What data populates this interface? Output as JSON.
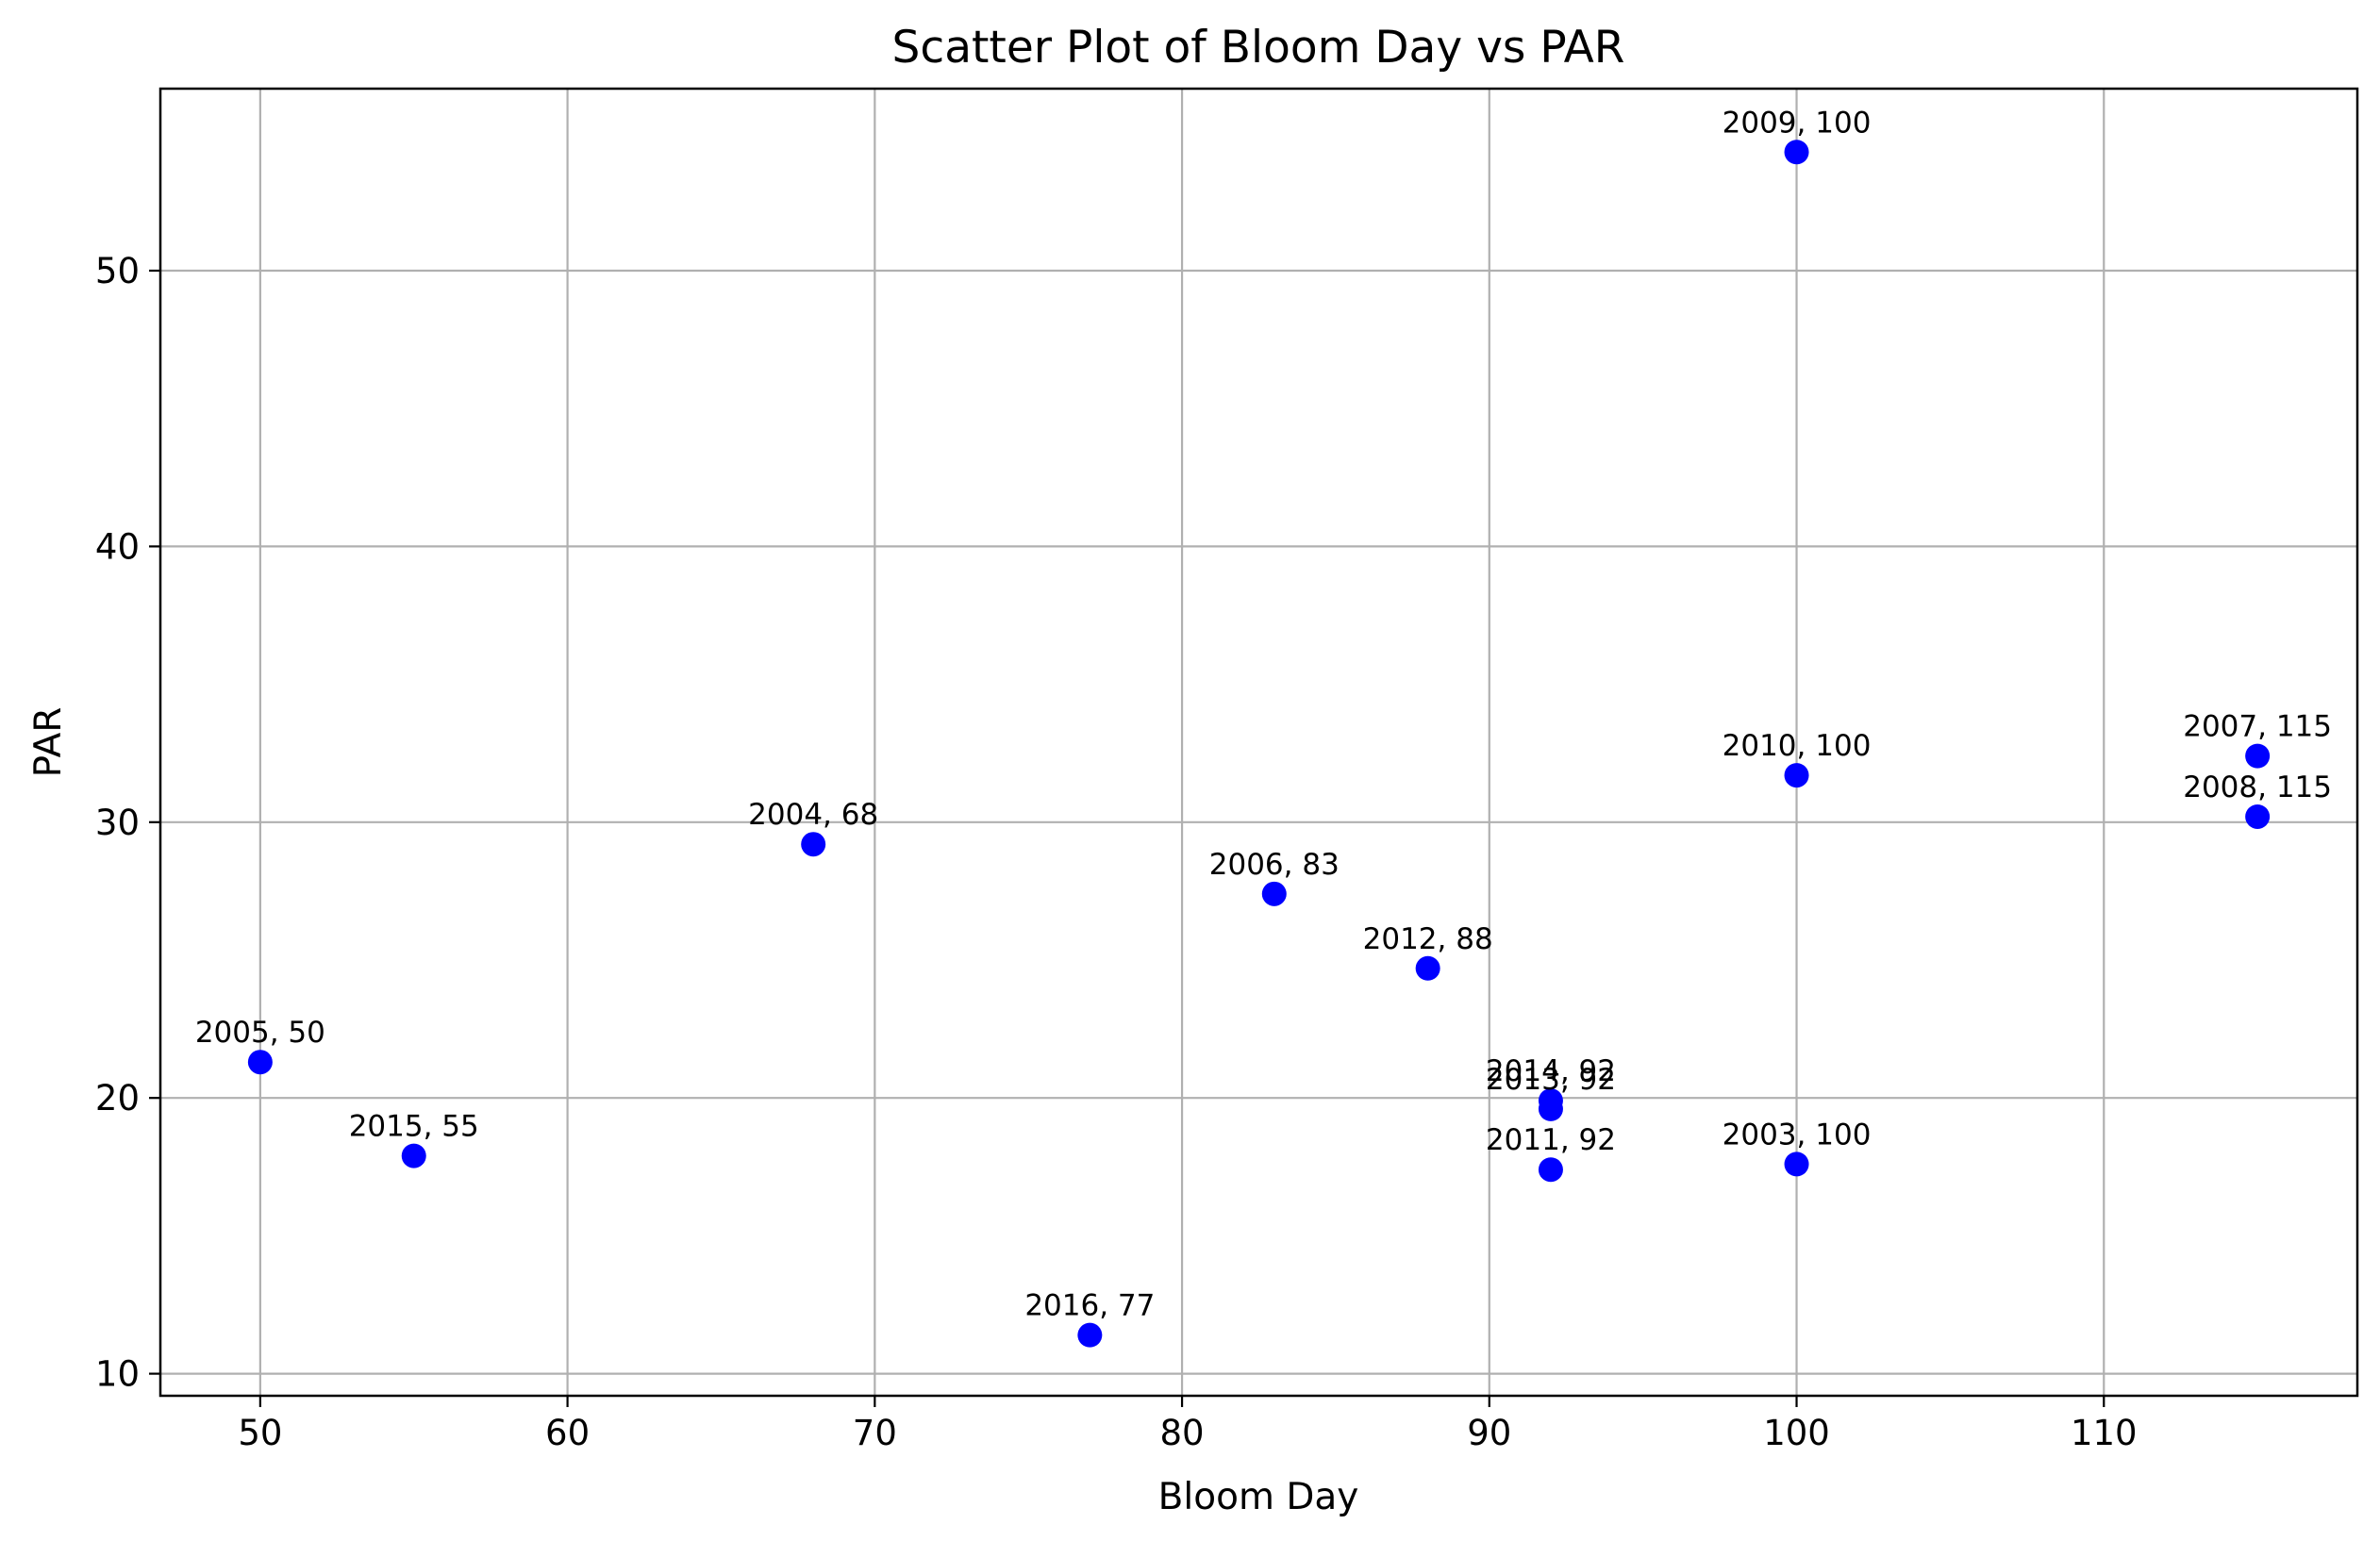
{
  "chart_data": {
    "type": "scatter",
    "title": "Scatter Plot of Bloom Day vs PAR",
    "xlabel": "Bloom Day",
    "ylabel": "PAR",
    "xlim": [
      46.75,
      118.25
    ],
    "ylim": [
      9.2,
      56.6
    ],
    "xticks": [
      50,
      60,
      70,
      80,
      90,
      100,
      110
    ],
    "yticks": [
      10,
      20,
      30,
      40,
      50
    ],
    "grid": true,
    "marker_color": "#0000ff",
    "points": [
      {
        "x": 100,
        "y": 54.3,
        "label": "2009, 100"
      },
      {
        "x": 115,
        "y": 32.4,
        "label": "2007, 115"
      },
      {
        "x": 100,
        "y": 31.7,
        "label": "2010, 100"
      },
      {
        "x": 115,
        "y": 30.2,
        "label": "2008, 115"
      },
      {
        "x": 68,
        "y": 29.2,
        "label": "2004, 68"
      },
      {
        "x": 83,
        "y": 27.4,
        "label": "2006, 83"
      },
      {
        "x": 88,
        "y": 24.7,
        "label": "2012, 88"
      },
      {
        "x": 50,
        "y": 21.3,
        "label": "2005, 50"
      },
      {
        "x": 92,
        "y": 19.9,
        "label": "2014, 92"
      },
      {
        "x": 92,
        "y": 19.6,
        "label": "2013, 92"
      },
      {
        "x": 55,
        "y": 17.9,
        "label": "2015, 55"
      },
      {
        "x": 100,
        "y": 17.6,
        "label": "2003, 100"
      },
      {
        "x": 92,
        "y": 17.4,
        "label": "2011, 92"
      },
      {
        "x": 77,
        "y": 11.4,
        "label": "2016, 77"
      }
    ]
  }
}
